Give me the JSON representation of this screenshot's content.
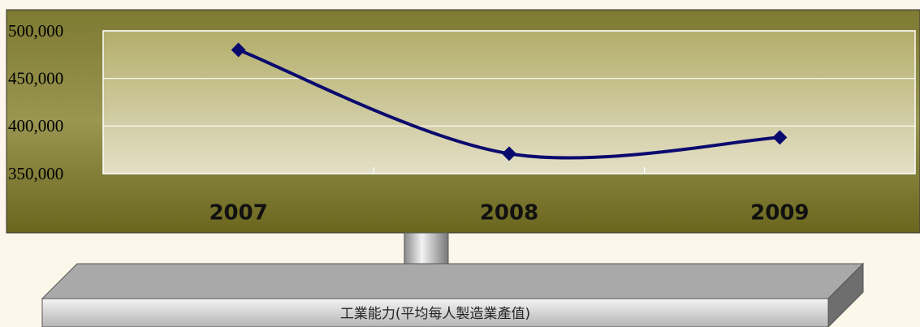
{
  "chart_data": {
    "type": "line",
    "categories": [
      "2007",
      "2008",
      "2009"
    ],
    "values": [
      480000,
      371000,
      388000
    ],
    "color": "#0a0a6e",
    "ylim": [
      350000,
      500000
    ],
    "yticks": [
      {
        "value": 350000,
        "label": "350,000"
      },
      {
        "value": 400000,
        "label": "400,000"
      },
      {
        "value": 450000,
        "label": "450,000"
      },
      {
        "value": 500000,
        "label": "500,000"
      }
    ],
    "grid": true,
    "smooth": true
  },
  "caption": "工業能力(平均每人製造業產值)"
}
